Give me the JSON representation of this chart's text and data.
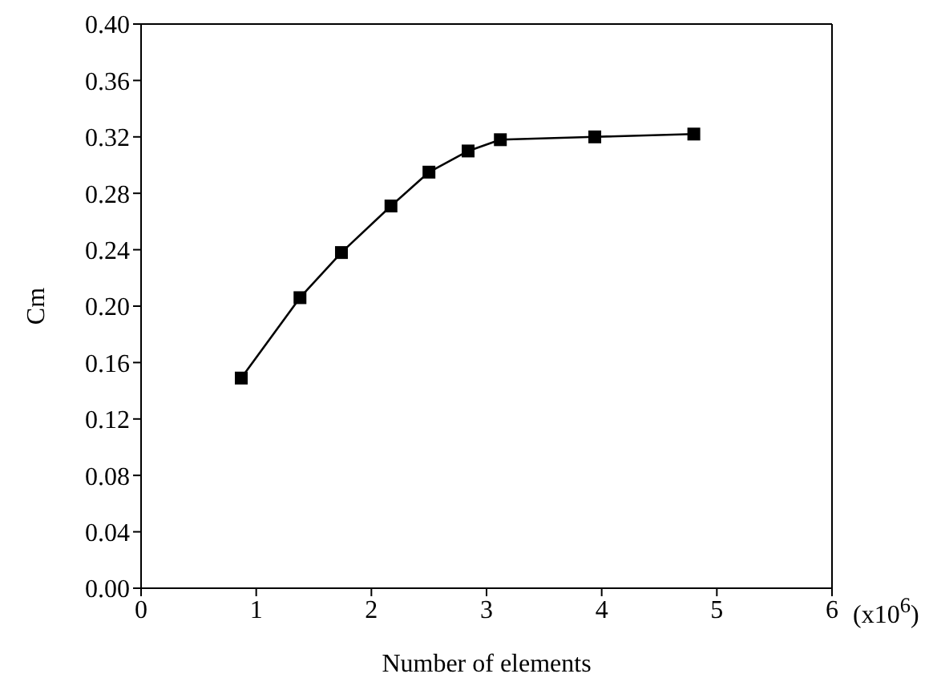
{
  "chart_data": {
    "type": "line",
    "xlabel": "Number of elements",
    "ylabel": "Cm",
    "x": [
      0.87,
      1.38,
      1.74,
      2.17,
      2.5,
      2.84,
      3.12,
      3.94,
      4.8
    ],
    "series": [
      {
        "color": "#000000",
        "values": [
          0.149,
          0.206,
          0.238,
          0.271,
          0.295,
          0.31,
          0.318,
          0.32,
          0.322
        ]
      }
    ],
    "xlim": [
      0,
      6
    ],
    "xticks": [
      0,
      1,
      2,
      3,
      4,
      5,
      6
    ],
    "ylim": [
      0,
      0.4
    ],
    "yticks": [
      {
        "value": 0,
        "label": "0.00"
      },
      {
        "value": 0.04,
        "label": "0.04"
      },
      {
        "value": 0.08,
        "label": "0.08"
      },
      {
        "value": 0.12,
        "label": "0.12"
      },
      {
        "value": 0.16,
        "label": "0.16"
      },
      {
        "value": 0.2,
        "label": "0.20"
      },
      {
        "value": 0.24,
        "label": "0.24"
      },
      {
        "value": 0.28,
        "label": "0.28"
      },
      {
        "value": 0.32,
        "label": "0.32"
      },
      {
        "value": 0.36,
        "label": "0.36"
      },
      {
        "value": 0.4,
        "label": "0.40"
      }
    ],
    "marker": "square",
    "line_style": "solid",
    "annotations": [
      "(x10$^{6}$)"
    ]
  }
}
